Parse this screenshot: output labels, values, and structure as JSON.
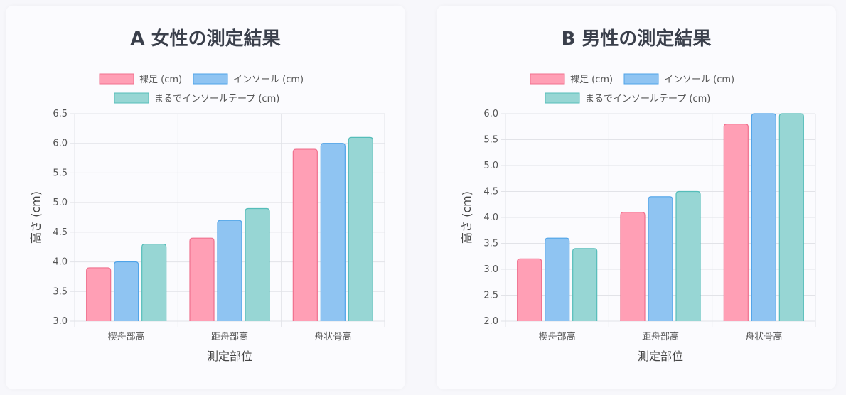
{
  "chart_data": [
    {
      "type": "bar",
      "title": "A 女性の測定結果",
      "xlabel": "測定部位",
      "ylabel": "高さ (cm)",
      "ylim": [
        3.0,
        6.5
      ],
      "yticks": [
        "3.0",
        "3.5",
        "4.0",
        "4.5",
        "5.0",
        "5.5",
        "6.0",
        "6.5"
      ],
      "grid": true,
      "legend_placement": "top",
      "categories": [
        "楔舟部高",
        "距舟部高",
        "舟状骨高"
      ],
      "series": [
        {
          "name": "裸足 (cm)",
          "values": [
            3.9,
            4.4,
            5.9
          ],
          "fill": "#ff9fb5",
          "stroke": "#f0708e"
        },
        {
          "name": "インソール (cm)",
          "values": [
            4.0,
            4.7,
            6.0
          ],
          "fill": "#8fc4f2",
          "stroke": "#4fa3e8"
        },
        {
          "name": "まるでインソールテープ (cm)",
          "values": [
            4.3,
            4.9,
            6.1
          ],
          "fill": "#97d6d4",
          "stroke": "#55bdb9"
        }
      ]
    },
    {
      "type": "bar",
      "title": "B 男性の測定結果",
      "xlabel": "測定部位",
      "ylabel": "高さ (cm)",
      "ylim": [
        2.0,
        6.0
      ],
      "yticks": [
        "2.0",
        "2.5",
        "3.0",
        "3.5",
        "4.0",
        "4.5",
        "5.0",
        "5.5",
        "6.0"
      ],
      "grid": true,
      "legend_placement": "top",
      "categories": [
        "楔舟部高",
        "距舟部高",
        "舟状骨高"
      ],
      "series": [
        {
          "name": "裸足 (cm)",
          "values": [
            3.2,
            4.1,
            5.8
          ],
          "fill": "#ff9fb5",
          "stroke": "#f0708e"
        },
        {
          "name": "インソール (cm)",
          "values": [
            3.6,
            4.4,
            6.0
          ],
          "fill": "#8fc4f2",
          "stroke": "#4fa3e8"
        },
        {
          "name": "まるでインソールテープ (cm)",
          "values": [
            3.4,
            4.5,
            6.0
          ],
          "fill": "#97d6d4",
          "stroke": "#55bdb9"
        }
      ]
    }
  ]
}
